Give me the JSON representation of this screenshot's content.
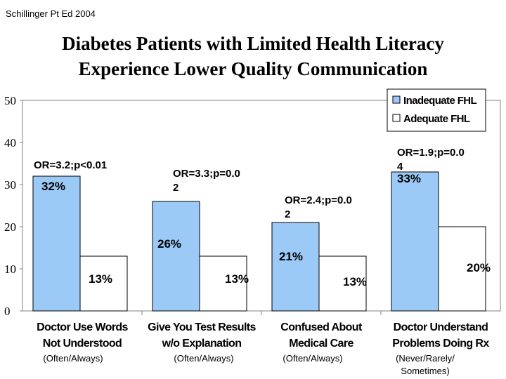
{
  "citation": "Schillinger Pt Ed 2004",
  "title_line1": "Diabetes Patients with Limited Health Literacy",
  "title_line2": "Experience Lower Quality Communication",
  "chart_data": {
    "type": "bar",
    "ylim": [
      0,
      50
    ],
    "yticks": [
      0,
      10,
      20,
      30,
      40,
      50
    ],
    "categories": [
      {
        "line1": "Doctor Use Words",
        "line2": "Not Understood",
        "note1": "(Often/Always)",
        "note2": ""
      },
      {
        "line1": "Give You Test Results",
        "line2": "w/o Explanation",
        "note1": "(Often/Always)",
        "note2": ""
      },
      {
        "line1": "Confused About",
        "line2": "Medical Care",
        "note1": "(Often/Always)",
        "note2": ""
      },
      {
        "line1": "Doctor Understand",
        "line2": "Problems Doing Rx",
        "note1": "(Never/Rarely/",
        "note2": "Sometimes)"
      }
    ],
    "series": [
      {
        "name": "Inadequate FHL",
        "color": "#9ccaf6",
        "values": [
          32,
          26,
          21,
          33
        ],
        "labels": [
          "32%",
          "26%",
          "21%",
          "33%"
        ]
      },
      {
        "name": "Adequate FHL",
        "color": "#ffffff",
        "values": [
          13,
          13,
          13,
          20
        ],
        "labels": [
          "13%",
          "13%",
          "13%",
          "20%"
        ]
      }
    ],
    "annotations": [
      {
        "line1": "OR=3.2;p<0.01",
        "line2": ""
      },
      {
        "line1": "OR=3.3;p=0.0",
        "line2": "2"
      },
      {
        "line1": "OR=2.4;p=0.0",
        "line2": "2"
      },
      {
        "line1": "OR=1.9;p=0.0",
        "line2": "4"
      }
    ],
    "legend_position": "top-right",
    "grid": false
  }
}
